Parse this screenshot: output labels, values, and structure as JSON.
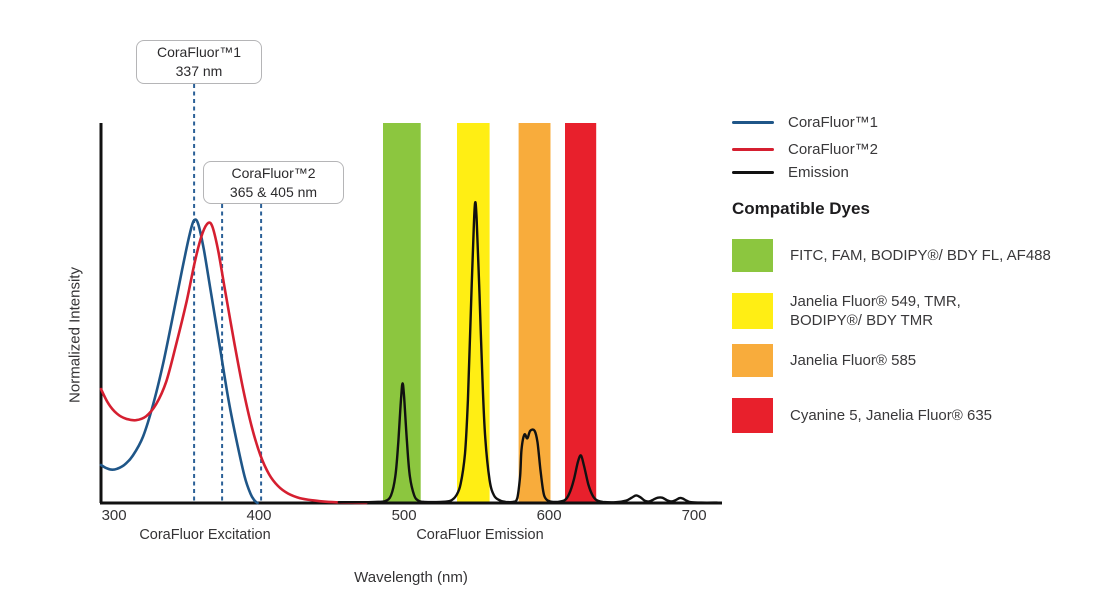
{
  "callouts": {
    "corafluor1": {
      "line1": "CoraFluor™1",
      "line2": "337 nm"
    },
    "corafluor2": {
      "line1": "CoraFluor™2",
      "line2": "365 & 405 nm"
    }
  },
  "axis": {
    "y_label": "Normalized Intensity",
    "x_label": "Wavelength (nm)",
    "x_section_labels": {
      "excitation": "CoraFluor Excitation",
      "emission": "CoraFluor Emission"
    }
  },
  "legend": {
    "items": [
      {
        "label": "CoraFluor™1",
        "color": "#1F5688"
      },
      {
        "label": "CoraFluor™2",
        "color": "#D51F30"
      },
      {
        "label": "Emission",
        "color": "#111111"
      }
    ],
    "compatible_dyes_title": "Compatible Dyes",
    "dyes": [
      {
        "name": "green",
        "color": "#8CC63F",
        "line1": "FITC, FAM, BODIPY®/ BDY FL, AF488",
        "line2": ""
      },
      {
        "name": "yellow",
        "color": "#FFEE14",
        "line1": "Janelia Fluor® 549, TMR,",
        "line2": "BODIPY®/ BDY TMR"
      },
      {
        "name": "orange",
        "color": "#F8AC3C",
        "line1": "Janelia Fluor® 585",
        "line2": ""
      },
      {
        "name": "red",
        "color": "#E8202C",
        "line1": "Cyanine 5, Janelia Fluor® 635",
        "line2": ""
      }
    ]
  },
  "chart_data": {
    "type": "line",
    "title": "",
    "xlabel": "Wavelength (nm)",
    "ylabel": "Normalized Intensity",
    "x_domain": [
      291,
      719
    ],
    "y_domain": [
      0,
      1
    ],
    "x_ticks": [
      300,
      400,
      500,
      600,
      700
    ],
    "grid": false,
    "legend_position": "right",
    "axis_color": "#111111",
    "tick_label_color": "#343335",
    "marker_color": "#2B6097",
    "excitation_markers": [
      {
        "label": "337",
        "x_nm": 355.2
      },
      {
        "label": "365",
        "x_nm": 374.5
      },
      {
        "label": "405",
        "x_nm": 401.4
      }
    ],
    "emission_filter_bands": [
      {
        "name": "green",
        "color": "#8CC63F",
        "nm_range": [
          485.5,
          511.5
        ]
      },
      {
        "name": "yellow",
        "color": "#FFEE14",
        "nm_range": [
          536.5,
          559.0
        ]
      },
      {
        "name": "orange",
        "color": "#F8AC3C",
        "nm_range": [
          579.0,
          601.0
        ]
      },
      {
        "name": "red",
        "color": "#E8202C",
        "nm_range": [
          611.0,
          632.5
        ]
      }
    ],
    "series": [
      {
        "name": "CoraFluor™1",
        "kind": "excitation",
        "color": "#1F5688",
        "width": 2.6,
        "points": [
          [
            291,
            0.1
          ],
          [
            294,
            0.093
          ],
          [
            298,
            0.088
          ],
          [
            302,
            0.09
          ],
          [
            307,
            0.1
          ],
          [
            313,
            0.125
          ],
          [
            320,
            0.175
          ],
          [
            327,
            0.26
          ],
          [
            334,
            0.37
          ],
          [
            341,
            0.5
          ],
          [
            347,
            0.615
          ],
          [
            352,
            0.705
          ],
          [
            355,
            0.743
          ],
          [
            358,
            0.735
          ],
          [
            362,
            0.665
          ],
          [
            367,
            0.55
          ],
          [
            373,
            0.41
          ],
          [
            379,
            0.27
          ],
          [
            385,
            0.155
          ],
          [
            390,
            0.07
          ],
          [
            394,
            0.025
          ],
          [
            397,
            0.006
          ],
          [
            399,
            0.0
          ]
        ]
      },
      {
        "name": "CoraFluor™2",
        "kind": "excitation",
        "color": "#D51F30",
        "width": 2.6,
        "points": [
          [
            291,
            0.3
          ],
          [
            296,
            0.262
          ],
          [
            302,
            0.235
          ],
          [
            308,
            0.222
          ],
          [
            315,
            0.218
          ],
          [
            322,
            0.228
          ],
          [
            329,
            0.26
          ],
          [
            336,
            0.32
          ],
          [
            343,
            0.42
          ],
          [
            350,
            0.53
          ],
          [
            356,
            0.64
          ],
          [
            361,
            0.71
          ],
          [
            365,
            0.737
          ],
          [
            368,
            0.725
          ],
          [
            372,
            0.66
          ],
          [
            377,
            0.55
          ],
          [
            383,
            0.42
          ],
          [
            389,
            0.3
          ],
          [
            395,
            0.2
          ],
          [
            401,
            0.125
          ],
          [
            407,
            0.075
          ],
          [
            413,
            0.045
          ],
          [
            420,
            0.025
          ],
          [
            428,
            0.013
          ],
          [
            437,
            0.007
          ],
          [
            448,
            0.003
          ],
          [
            460,
            0.001
          ],
          [
            474,
            0.0
          ]
        ]
      },
      {
        "name": "Emission",
        "kind": "emission",
        "color": "#111111",
        "width": 2.4,
        "points": [
          [
            455,
            0.002
          ],
          [
            470,
            0.002
          ],
          [
            480,
            0.003
          ],
          [
            487,
            0.005
          ],
          [
            491,
            0.02
          ],
          [
            494,
            0.07
          ],
          [
            496,
            0.16
          ],
          [
            498,
            0.28
          ],
          [
            499,
            0.315
          ],
          [
            500,
            0.28
          ],
          [
            502,
            0.16
          ],
          [
            504,
            0.07
          ],
          [
            507,
            0.02
          ],
          [
            510,
            0.006
          ],
          [
            514,
            0.003
          ],
          [
            525,
            0.003
          ],
          [
            532,
            0.006
          ],
          [
            536,
            0.02
          ],
          [
            539,
            0.05
          ],
          [
            542,
            0.13
          ],
          [
            544,
            0.27
          ],
          [
            546,
            0.5
          ],
          [
            548,
            0.72
          ],
          [
            549,
            0.79
          ],
          [
            550,
            0.75
          ],
          [
            552,
            0.55
          ],
          [
            554,
            0.33
          ],
          [
            556,
            0.17
          ],
          [
            559,
            0.06
          ],
          [
            562,
            0.02
          ],
          [
            566,
            0.007
          ],
          [
            570,
            0.003
          ],
          [
            575,
            0.003
          ],
          [
            578,
            0.012
          ],
          [
            580,
            0.07
          ],
          [
            581,
            0.14
          ],
          [
            583,
            0.18
          ],
          [
            585,
            0.17
          ],
          [
            587,
            0.19
          ],
          [
            590,
            0.19
          ],
          [
            592,
            0.16
          ],
          [
            594,
            0.09
          ],
          [
            596,
            0.03
          ],
          [
            598,
            0.01
          ],
          [
            601,
            0.004
          ],
          [
            606,
            0.003
          ],
          [
            611,
            0.008
          ],
          [
            614,
            0.025
          ],
          [
            617,
            0.06
          ],
          [
            620,
            0.11
          ],
          [
            622,
            0.125
          ],
          [
            624,
            0.1
          ],
          [
            627,
            0.05
          ],
          [
            630,
            0.02
          ],
          [
            633,
            0.007
          ],
          [
            637,
            0.003
          ],
          [
            646,
            0.002
          ],
          [
            653,
            0.006
          ],
          [
            657,
            0.014
          ],
          [
            660,
            0.02
          ],
          [
            663,
            0.015
          ],
          [
            666,
            0.006
          ],
          [
            669,
            0.004
          ],
          [
            672,
            0.009
          ],
          [
            675,
            0.014
          ],
          [
            678,
            0.014
          ],
          [
            681,
            0.008
          ],
          [
            684,
            0.004
          ],
          [
            687,
            0.007
          ],
          [
            690,
            0.013
          ],
          [
            692,
            0.012
          ],
          [
            695,
            0.006
          ],
          [
            698,
            0.002
          ],
          [
            705,
            0.001
          ],
          [
            716,
            0.001
          ]
        ]
      }
    ]
  }
}
